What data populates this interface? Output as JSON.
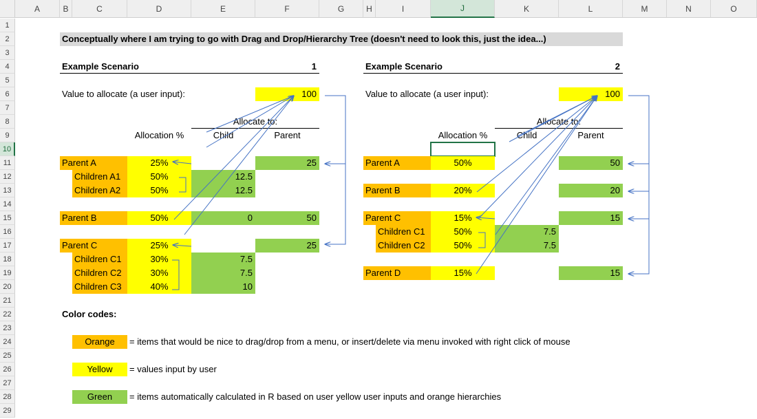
{
  "columns": [
    "A",
    "B",
    "C",
    "D",
    "E",
    "F",
    "G",
    "H",
    "I",
    "J",
    "K",
    "L",
    "M",
    "N",
    "O"
  ],
  "rows": [
    "1",
    "2",
    "3",
    "4",
    "5",
    "6",
    "7",
    "8",
    "9",
    "10",
    "11",
    "12",
    "13",
    "14",
    "15",
    "16",
    "17",
    "18",
    "19",
    "20",
    "21",
    "22",
    "23",
    "24",
    "25",
    "26",
    "27",
    "28",
    "29"
  ],
  "selected_column": "J",
  "selected_row": "10",
  "title_banner": "Conceptually where I am trying to go with Drag and Drop/Hierarchy Tree (doesn't need to look this, just the idea...)",
  "scenario1": {
    "heading": "Example Scenario",
    "number": "1",
    "value_label": "Value to allocate (a user input):",
    "value": "100",
    "allocate_to": "Allocate to:",
    "alloc_pct_header": "Allocation %",
    "child_header": "Child",
    "parent_header": "Parent",
    "items": [
      {
        "label": "Parent A",
        "pct": "25%",
        "child": "",
        "parent": "25"
      },
      {
        "label": "Children A1",
        "pct": "50%",
        "child": "12.5",
        "parent": ""
      },
      {
        "label": "Children A2",
        "pct": "50%",
        "child": "12.5",
        "parent": ""
      },
      {
        "label": "Parent B",
        "pct": "50%",
        "child": "0",
        "parent": "50"
      },
      {
        "label": "Parent C",
        "pct": "25%",
        "child": "",
        "parent": "25"
      },
      {
        "label": "Children C1",
        "pct": "30%",
        "child": "7.5",
        "parent": ""
      },
      {
        "label": "Children C2",
        "pct": "30%",
        "child": "7.5",
        "parent": ""
      },
      {
        "label": "Children C3",
        "pct": "40%",
        "child": "10",
        "parent": ""
      }
    ]
  },
  "scenario2": {
    "heading": "Example Scenario",
    "number": "2",
    "value_label": "Value to allocate (a user input):",
    "value": "100",
    "allocate_to": "Allocate to:",
    "alloc_pct_header": "Allocation %",
    "child_header": "Child",
    "parent_header": "Parent",
    "items": [
      {
        "label": "Parent A",
        "pct": "50%",
        "child": "",
        "parent": "50"
      },
      {
        "label": "Parent B",
        "pct": "20%",
        "child": "",
        "parent": "20"
      },
      {
        "label": "Parent C",
        "pct": "15%",
        "child": "",
        "parent": "15"
      },
      {
        "label": "Children C1",
        "pct": "50%",
        "child": "7.5",
        "parent": ""
      },
      {
        "label": "Children C2",
        "pct": "50%",
        "child": "7.5",
        "parent": ""
      },
      {
        "label": "Parent D",
        "pct": "15%",
        "child": "",
        "parent": "15"
      }
    ]
  },
  "color_codes": {
    "heading": "Color codes:",
    "orange_label": "Orange",
    "orange_desc": "= items that would be nice to drag/drop from a menu, or insert/delete via menu invoked with right click of mouse",
    "yellow_label": "Yellow",
    "yellow_desc": "= values input by user",
    "green_label": "Green",
    "green_desc": "= items automatically calculated in R based on user yellow user inputs and orange hierarchies"
  },
  "colors": {
    "orange": "#ffc000",
    "yellow": "#ffff00",
    "green": "#92d050",
    "banner_grey": "#d9d9d9",
    "arrow_blue": "#4472c4",
    "selection_green": "#217346"
  }
}
